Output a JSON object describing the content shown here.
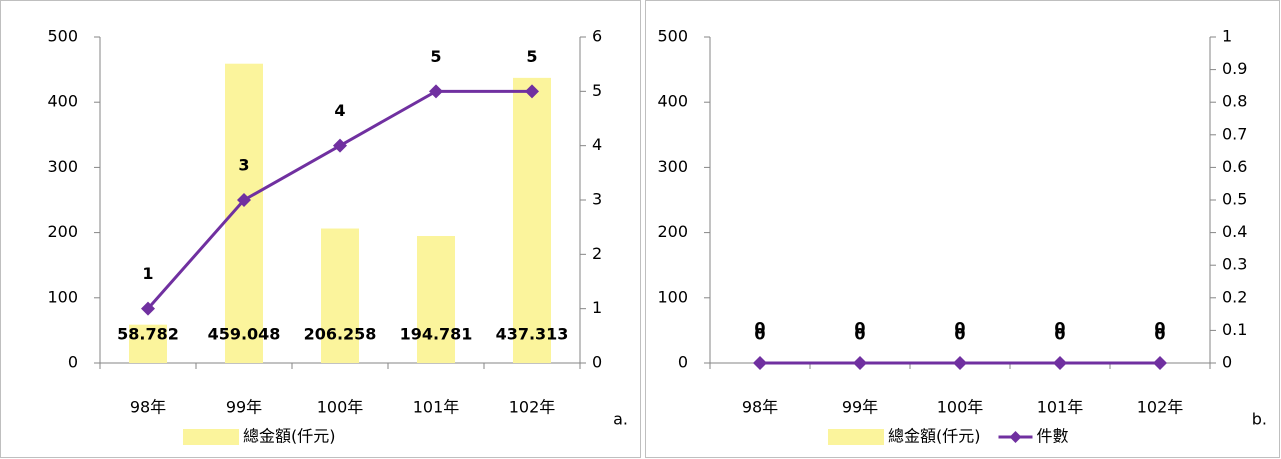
{
  "chart_data": [
    {
      "type": "bar_line",
      "label": "a.",
      "categories": [
        "98年",
        "99年",
        "100年",
        "101年",
        "102年"
      ],
      "series": [
        {
          "name": "總金額(仟元)",
          "type": "bar",
          "color": "#fbf49c",
          "label_color": "#4f6228",
          "values": [
            58.782,
            459.048,
            206.258,
            194.781,
            437.313
          ]
        },
        {
          "name": "件數",
          "type": "line",
          "axis": "y2",
          "color": "#7030a0",
          "label_color": "#7030a0",
          "values": [
            1,
            3,
            4,
            5,
            5
          ]
        }
      ],
      "legend": [
        0
      ],
      "ylim": [
        0,
        500
      ],
      "yticks": [
        0,
        100,
        200,
        300,
        400,
        500
      ],
      "y2lim": [
        0,
        6
      ],
      "y2ticks": [
        0,
        1,
        2,
        3,
        4,
        5,
        6
      ]
    },
    {
      "type": "bar_line",
      "label": "b.",
      "categories": [
        "98年",
        "99年",
        "100年",
        "101年",
        "102年"
      ],
      "series": [
        {
          "name": "總金額(仟元)",
          "type": "bar",
          "color": "#fbf49c",
          "label_color": "#4f6228",
          "values": [
            0,
            0,
            0,
            0,
            0
          ]
        },
        {
          "name": "件數",
          "type": "line",
          "axis": "y2",
          "color": "#7030a0",
          "label_color": "#7030a0",
          "values": [
            0,
            0,
            0,
            0,
            0
          ]
        }
      ],
      "legend": [
        0,
        1
      ],
      "ylim": [
        0,
        500
      ],
      "yticks": [
        0,
        100,
        200,
        300,
        400,
        500
      ],
      "y2lim": [
        0,
        1
      ],
      "y2ticks": [
        0,
        0.1,
        0.2,
        0.3,
        0.4,
        0.5,
        0.6,
        0.7,
        0.8,
        0.9,
        1
      ]
    }
  ]
}
